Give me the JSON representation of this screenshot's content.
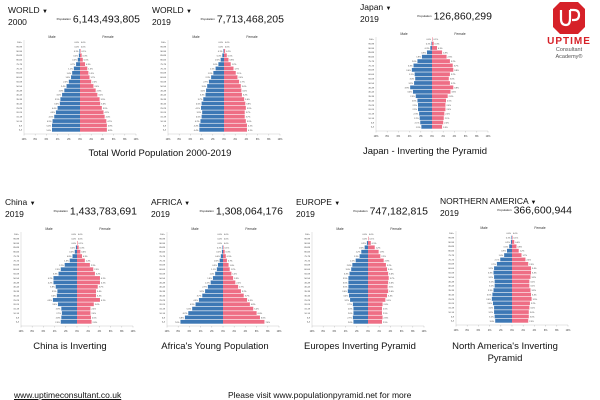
{
  "age_groups": [
    "0-4",
    "5-9",
    "10-14",
    "15-19",
    "20-24",
    "25-29",
    "30-34",
    "35-39",
    "40-44",
    "45-49",
    "50-54",
    "55-59",
    "60-64",
    "65-69",
    "70-74",
    "75-79",
    "80-84",
    "85-89",
    "90-94",
    "95-99",
    "100+"
  ],
  "axis_ticks": [
    "10%",
    "8%",
    "6%",
    "4%",
    "2%",
    "0%",
    "2%",
    "4%",
    "6%",
    "8%",
    "10%"
  ],
  "male_label": "Male",
  "female_label": "Female",
  "population_label": "Population",
  "colors": {
    "male": "#3d78b5",
    "female": "#ee6e85",
    "brand": "#d62128"
  },
  "chart_data": [
    {
      "type": "bar",
      "id": "world2000",
      "region": "WORLD",
      "year": "2000",
      "population": "6,143,493,805",
      "male": [
        5.0,
        5.0,
        4.9,
        4.6,
        4.3,
        4.0,
        3.6,
        3.5,
        3.2,
        2.8,
        2.4,
        2.0,
        1.6,
        1.4,
        1.1,
        0.7,
        0.4,
        0.2,
        0.1,
        0.0,
        0.0
      ],
      "female": [
        4.8,
        4.8,
        4.7,
        4.4,
        4.2,
        3.9,
        3.6,
        3.5,
        3.1,
        2.8,
        2.4,
        2.0,
        1.7,
        1.5,
        1.3,
        0.9,
        0.5,
        0.3,
        0.1,
        0.0,
        0.0
      ],
      "xlim": [
        -10,
        10
      ]
    },
    {
      "type": "bar",
      "id": "world2019",
      "region": "WORLD",
      "year": "2019",
      "population": "7,713,468,205",
      "male": [
        4.4,
        4.4,
        4.2,
        4.0,
        3.9,
        4.1,
        4.0,
        3.7,
        3.3,
        3.2,
        3.0,
        2.7,
        2.3,
        1.9,
        1.5,
        1.0,
        0.6,
        0.3,
        0.1,
        0.0,
        0.0
      ],
      "female": [
        4.1,
        4.1,
        3.9,
        3.7,
        3.7,
        3.9,
        3.8,
        3.6,
        3.2,
        3.1,
        3.0,
        2.7,
        2.4,
        2.1,
        1.7,
        1.2,
        0.8,
        0.5,
        0.2,
        0.0,
        0.0
      ],
      "xlim": [
        -10,
        10
      ]
    },
    {
      "type": "bar",
      "id": "japan",
      "region": "Japan",
      "year": "2019",
      "population": "126,860,299",
      "male": [
        1.9,
        2.1,
        2.2,
        2.3,
        2.5,
        2.5,
        2.6,
        2.9,
        3.4,
        3.9,
        3.2,
        3.0,
        3.1,
        3.6,
        3.3,
        2.6,
        1.8,
        0.9,
        0.3,
        0.1,
        0.0
      ],
      "female": [
        1.8,
        2.0,
        2.1,
        2.2,
        2.4,
        2.4,
        2.5,
        2.8,
        3.3,
        3.8,
        3.2,
        3.0,
        3.2,
        3.8,
        3.7,
        3.2,
        2.6,
        1.8,
        0.9,
        0.3,
        0.1
      ],
      "xlim": [
        -10,
        10
      ]
    },
    {
      "type": "bar",
      "id": "china",
      "region": "China",
      "year": "2019",
      "population": "1,433,783,691",
      "male": [
        2.9,
        2.8,
        2.7,
        2.8,
        3.4,
        4.3,
        3.6,
        3.5,
        3.8,
        4.2,
        4.2,
        3.3,
        2.9,
        2.2,
        1.3,
        0.8,
        0.4,
        0.2,
        0.0,
        0.0,
        0.0
      ],
      "female": [
        2.6,
        2.5,
        2.4,
        2.4,
        3.0,
        4.1,
        3.4,
        3.4,
        3.7,
        4.1,
        4.1,
        3.2,
        2.9,
        2.3,
        1.4,
        0.9,
        0.6,
        0.3,
        0.1,
        0.0,
        0.0
      ],
      "xlim": [
        -10,
        10
      ]
    },
    {
      "type": "bar",
      "id": "africa",
      "region": "AFRICA",
      "year": "2019",
      "population": "1,308,064,176",
      "male": [
        7.6,
        6.8,
        6.2,
        5.5,
        4.9,
        4.3,
        3.7,
        3.2,
        2.7,
        2.2,
        1.8,
        1.4,
        1.1,
        0.9,
        0.6,
        0.4,
        0.2,
        0.1,
        0.0,
        0.0,
        0.0
      ],
      "female": [
        7.4,
        6.6,
        6.0,
        5.4,
        4.8,
        4.3,
        3.7,
        3.2,
        2.7,
        2.2,
        1.8,
        1.5,
        1.2,
        1.0,
        0.7,
        0.5,
        0.3,
        0.1,
        0.0,
        0.0,
        0.0
      ],
      "xlim": [
        -10,
        10
      ]
    },
    {
      "type": "bar",
      "id": "europe",
      "region": "EUROPE",
      "year": "2019",
      "population": "747,182,815",
      "male": [
        2.6,
        2.7,
        2.6,
        2.6,
        2.7,
        3.2,
        3.4,
        3.6,
        3.5,
        3.5,
        3.5,
        3.3,
        3.0,
        2.8,
        2.2,
        1.5,
        1.2,
        0.6,
        0.2,
        0.0,
        0.0
      ],
      "female": [
        2.5,
        2.6,
        2.5,
        2.5,
        2.6,
        3.1,
        3.4,
        3.6,
        3.5,
        3.6,
        3.7,
        3.6,
        3.4,
        3.2,
        2.8,
        2.2,
        1.9,
        1.2,
        0.5,
        0.1,
        0.0
      ],
      "xlim": [
        -10,
        10
      ]
    },
    {
      "type": "bar",
      "id": "namerica",
      "region": "NORTHERN AMERICA",
      "year": "2019",
      "population": "366,600,944",
      "male": [
        3.0,
        3.1,
        3.2,
        3.2,
        3.4,
        3.6,
        3.5,
        3.3,
        3.1,
        3.1,
        3.2,
        3.3,
        3.2,
        2.7,
        2.1,
        1.4,
        0.9,
        0.5,
        0.2,
        0.1,
        0.0
      ],
      "female": [
        2.9,
        3.0,
        3.0,
        3.1,
        3.2,
        3.5,
        3.4,
        3.3,
        3.1,
        3.1,
        3.3,
        3.4,
        3.4,
        2.9,
        2.4,
        1.7,
        1.2,
        0.8,
        0.4,
        0.1,
        0.0
      ],
      "xlim": [
        -10,
        10
      ]
    }
  ],
  "captions": {
    "world": "Total World Population 2000-2019",
    "japan": "Japan - Inverting the Pyramid",
    "china": "China is Inverting",
    "africa": "Africa's Young Population",
    "europe": "Europes Inverting Pyramid",
    "namerica_1": "North America's Inverting",
    "namerica_2": "Pyramid"
  },
  "logo": {
    "mark": "UP",
    "name": "UPTIME",
    "line1": "Consultant",
    "line2": "Academy®"
  },
  "footer": {
    "website": "www.uptimeconsultant.co.uk",
    "visit": "Please visit www.populationpyramid.net for more"
  }
}
